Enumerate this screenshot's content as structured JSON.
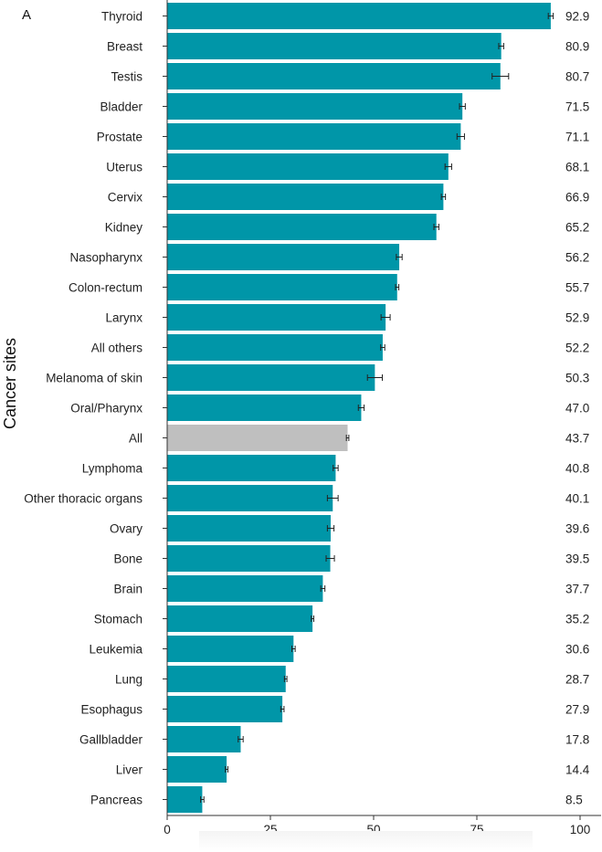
{
  "panel_label": "A",
  "chart_data": {
    "type": "bar",
    "orientation": "horizontal",
    "ylabel": "Cancer sites",
    "xlabel": "",
    "xlim": [
      0,
      100
    ],
    "xticks": [
      "0",
      "25",
      "50",
      "75",
      "100"
    ],
    "grid": false,
    "colors": {
      "bar": "#0096A8",
      "highlight": "#BFBFBF"
    },
    "highlight_category": "All",
    "categories": [
      "Thyroid",
      "Breast",
      "Testis",
      "Bladder",
      "Prostate",
      "Uterus",
      "Cervix",
      "Kidney",
      "Nasopharynx",
      "Colon-rectum",
      "Larynx",
      "All others",
      "Melanoma of skin",
      "Oral/Pharynx",
      "All",
      "Lymphoma",
      "Other thoracic organs",
      "Ovary",
      "Bone",
      "Brain",
      "Stomach",
      "Leukemia",
      "Lung",
      "Esophagus",
      "Gallbladder",
      "Liver",
      "Pancreas"
    ],
    "values": [
      92.9,
      80.9,
      80.7,
      71.5,
      71.1,
      68.1,
      66.9,
      65.2,
      56.2,
      55.7,
      52.9,
      52.2,
      50.3,
      47.0,
      43.7,
      40.8,
      40.1,
      39.6,
      39.5,
      37.7,
      35.2,
      30.6,
      28.7,
      27.9,
      17.8,
      14.4,
      8.5
    ],
    "value_labels": [
      "92.9",
      "80.9",
      "80.7",
      "71.5",
      "71.1",
      "68.1",
      "66.9",
      "65.2",
      "56.2",
      "55.7",
      "52.9",
      "52.2",
      "50.3",
      "47.0",
      "43.7",
      "40.8",
      "40.1",
      "39.6",
      "39.5",
      "37.7",
      "35.2",
      "30.6",
      "28.7",
      "27.9",
      "17.8",
      "14.4",
      "8.5"
    ],
    "error": [
      0.6,
      0.6,
      2.0,
      0.7,
      0.9,
      0.8,
      0.5,
      0.6,
      0.7,
      0.4,
      1.1,
      0.5,
      1.8,
      0.7,
      0.3,
      0.6,
      1.3,
      0.8,
      1.0,
      0.5,
      0.3,
      0.4,
      0.3,
      0.4,
      0.6,
      0.3,
      0.4
    ]
  }
}
